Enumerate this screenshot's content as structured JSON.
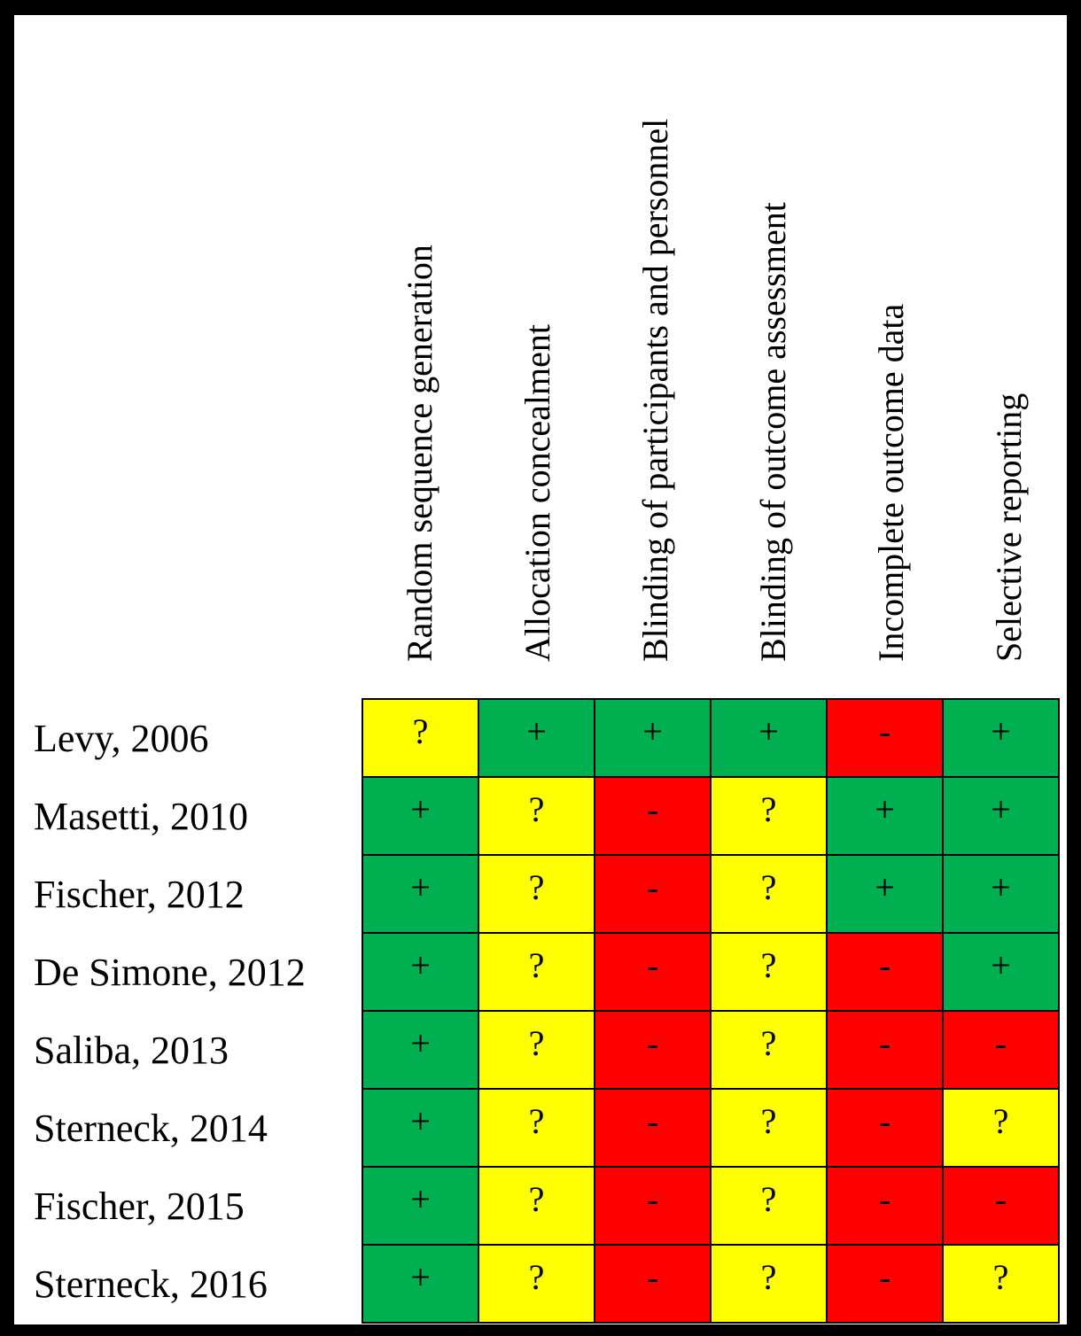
{
  "chart_data": {
    "type": "table",
    "columns": [
      "Random sequence generation",
      "Allocation concealment",
      "Blinding of participants and personnel",
      "Blinding of outcome assessment",
      "Incomplete outcome data",
      "Selective reporting"
    ],
    "rows": [
      {
        "study": "Levy, 2006",
        "ratings": [
          "?",
          "+",
          "+",
          "+",
          "-",
          "+"
        ]
      },
      {
        "study": "Masetti, 2010",
        "ratings": [
          "+",
          "?",
          "-",
          "?",
          "+",
          "+"
        ]
      },
      {
        "study": "Fischer, 2012",
        "ratings": [
          "+",
          "?",
          "-",
          "?",
          "+",
          "+"
        ]
      },
      {
        "study": "De Simone, 2012",
        "ratings": [
          "+",
          "?",
          "-",
          "?",
          "-",
          "+"
        ]
      },
      {
        "study": "Saliba, 2013",
        "ratings": [
          "+",
          "?",
          "-",
          "?",
          "-",
          "-"
        ]
      },
      {
        "study": "Sterneck, 2014",
        "ratings": [
          "+",
          "?",
          "-",
          "?",
          "-",
          "?"
        ]
      },
      {
        "study": "Fischer, 2015",
        "ratings": [
          "+",
          "?",
          "-",
          "?",
          "-",
          "-"
        ]
      },
      {
        "study": "Sterneck, 2016",
        "ratings": [
          "+",
          "?",
          "-",
          "?",
          "-",
          "?"
        ]
      }
    ],
    "legend_colors": {
      "+": "#00b050",
      "?": "#ffff00",
      "-": "#ff0000"
    }
  }
}
